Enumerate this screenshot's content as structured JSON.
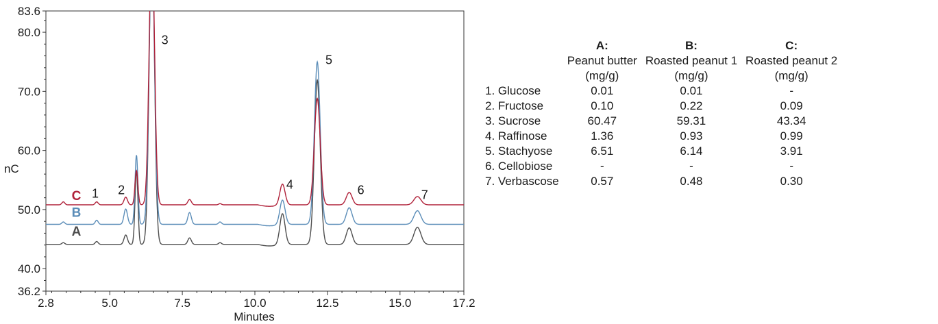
{
  "chart_data": {
    "type": "line",
    "xlabel": "Minutes",
    "ylabel": "nC",
    "xlim": [
      2.8,
      17.2
    ],
    "ylim": [
      36.2,
      83.6
    ],
    "x_ticks": [
      "2.8",
      "5.0",
      "7.5",
      "10.0",
      "12.5",
      "15.0",
      "17.2"
    ],
    "y_ticks": [
      "36.2",
      "40.0",
      "50.0",
      "60.0",
      "70.0",
      "80.0",
      "83.6"
    ],
    "grid": false,
    "series": [
      {
        "name": "A",
        "color": "#4d4d4d",
        "baseline": 44.1,
        "peaks": [
          [
            3.4,
            0.3,
            0.05
          ],
          [
            4.55,
            0.5,
            0.05
          ],
          [
            5.55,
            1.6,
            0.06
          ],
          [
            5.92,
            12.4,
            0.05
          ],
          [
            6.45,
            52.0,
            0.09
          ],
          [
            7.75,
            1.1,
            0.06
          ],
          [
            8.8,
            0.3,
            0.05
          ],
          [
            10.95,
            5.2,
            0.09
          ],
          [
            12.15,
            27.8,
            0.1
          ],
          [
            13.25,
            2.8,
            0.1
          ],
          [
            15.6,
            2.9,
            0.12
          ]
        ]
      },
      {
        "name": "B",
        "color": "#5b8db8",
        "baseline": 47.5,
        "peaks": [
          [
            3.4,
            0.4,
            0.05
          ],
          [
            4.55,
            0.7,
            0.05
          ],
          [
            5.55,
            2.6,
            0.06
          ],
          [
            5.92,
            11.7,
            0.05
          ],
          [
            6.45,
            48.0,
            0.09
          ],
          [
            7.75,
            2.0,
            0.06
          ],
          [
            8.8,
            0.4,
            0.05
          ],
          [
            10.95,
            4.1,
            0.09
          ],
          [
            12.15,
            27.5,
            0.1
          ],
          [
            13.25,
            2.8,
            0.1
          ],
          [
            15.6,
            2.3,
            0.12
          ]
        ]
      },
      {
        "name": "C",
        "color": "#b0223a",
        "baseline": 50.8,
        "peaks": [
          [
            3.4,
            0.5,
            0.05
          ],
          [
            4.55,
            0.5,
            0.05
          ],
          [
            5.55,
            1.3,
            0.06
          ],
          [
            5.92,
            5.8,
            0.05
          ],
          [
            6.45,
            46.0,
            0.09
          ],
          [
            7.75,
            0.9,
            0.06
          ],
          [
            8.8,
            0.2,
            0.05
          ],
          [
            10.95,
            3.5,
            0.09
          ],
          [
            12.15,
            18.0,
            0.1
          ],
          [
            13.25,
            2.1,
            0.1
          ],
          [
            15.6,
            1.4,
            0.12
          ]
        ]
      }
    ],
    "peak_labels": [
      {
        "text": "1",
        "x": 4.5,
        "y": 52.0
      },
      {
        "text": "2",
        "x": 5.4,
        "y": 52.6
      },
      {
        "text": "3",
        "x": 6.9,
        "y": 78.0
      },
      {
        "text": "4",
        "x": 11.2,
        "y": 53.5
      },
      {
        "text": "5",
        "x": 12.55,
        "y": 74.6
      },
      {
        "text": "6",
        "x": 13.65,
        "y": 52.6
      },
      {
        "text": "7",
        "x": 15.85,
        "y": 51.8
      }
    ],
    "trace_labels": [
      {
        "text": "C",
        "x": 3.85,
        "y": 51.6,
        "color": "#b0223a"
      },
      {
        "text": "B",
        "x": 3.85,
        "y": 48.8,
        "color": "#5b8db8"
      },
      {
        "text": "A",
        "x": 3.85,
        "y": 45.6,
        "color": "#4d4d4d"
      }
    ]
  },
  "table": {
    "headers": [
      {
        "letter": "",
        "lines": []
      },
      {
        "letter": "A:",
        "lines": [
          "Peanut butter",
          "(mg/g)"
        ]
      },
      {
        "letter": "B:",
        "lines": [
          "Roasted peanut 1",
          "(mg/g)"
        ]
      },
      {
        "letter": "C:",
        "lines": [
          "Roasted peanut 2",
          "(mg/g)"
        ]
      }
    ],
    "rows": [
      [
        "1. Glucose",
        "0.01",
        "0.01",
        "-"
      ],
      [
        "2. Fructose",
        "0.10",
        "0.22",
        "0.09"
      ],
      [
        "3. Sucrose",
        "60.47",
        "59.31",
        "43.34"
      ],
      [
        "4. Raffinose",
        "1.36",
        "0.93",
        "0.99"
      ],
      [
        "5. Stachyose",
        "6.51",
        "6.14",
        "3.91"
      ],
      [
        "6. Cellobiose",
        "-",
        "-",
        "-"
      ],
      [
        "7. Verbascose",
        "0.57",
        "0.48",
        "0.30"
      ]
    ]
  }
}
